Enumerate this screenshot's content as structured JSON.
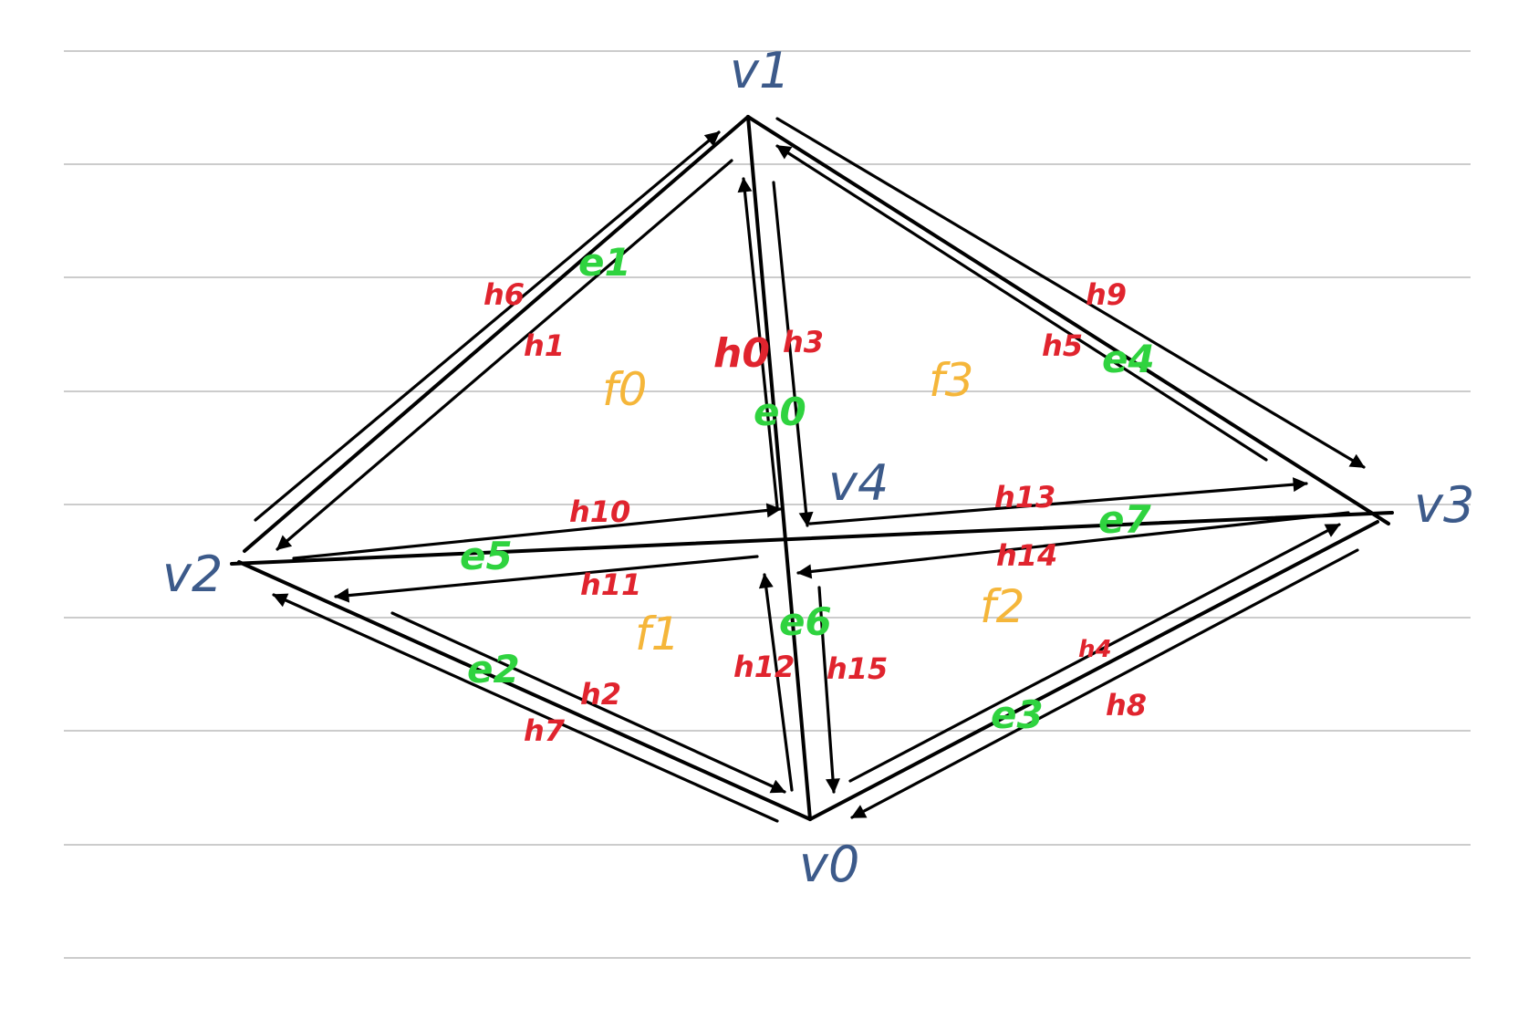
{
  "colors": {
    "vertex": "#3c5a8a",
    "edge": "#2fd33f",
    "halfedge": "#e0242e",
    "face": "#f5b63a",
    "stroke": "#000000",
    "ruled_line": "#bcbcbc"
  },
  "vertices": [
    {
      "id": "v0",
      "label": "v0"
    },
    {
      "id": "v1",
      "label": "v1"
    },
    {
      "id": "v2",
      "label": "v2"
    },
    {
      "id": "v3",
      "label": "v3"
    },
    {
      "id": "v4",
      "label": "v4"
    }
  ],
  "edges": [
    {
      "id": "e0",
      "label": "e0"
    },
    {
      "id": "e1",
      "label": "e1"
    },
    {
      "id": "e2",
      "label": "e2"
    },
    {
      "id": "e3",
      "label": "e3"
    },
    {
      "id": "e4",
      "label": "e4"
    },
    {
      "id": "e5",
      "label": "e5"
    },
    {
      "id": "e6",
      "label": "e6"
    },
    {
      "id": "e7",
      "label": "e7"
    }
  ],
  "faces": [
    {
      "id": "f0",
      "label": "f0"
    },
    {
      "id": "f1",
      "label": "f1"
    },
    {
      "id": "f2",
      "label": "f2"
    },
    {
      "id": "f3",
      "label": "f3"
    }
  ],
  "halfedges": [
    {
      "id": "h0",
      "label": "h0"
    },
    {
      "id": "h1",
      "label": "h1"
    },
    {
      "id": "h2",
      "label": "h2"
    },
    {
      "id": "h3",
      "label": "h3"
    },
    {
      "id": "h4",
      "label": "h4"
    },
    {
      "id": "h5",
      "label": "h5"
    },
    {
      "id": "h6",
      "label": "h6"
    },
    {
      "id": "h7",
      "label": "h7"
    },
    {
      "id": "h8",
      "label": "h8"
    },
    {
      "id": "h9",
      "label": "h9"
    },
    {
      "id": "h10",
      "label": "h10"
    },
    {
      "id": "h11",
      "label": "h11"
    },
    {
      "id": "h12",
      "label": "h12"
    },
    {
      "id": "h13",
      "label": "h13"
    },
    {
      "id": "h14",
      "label": "h14"
    },
    {
      "id": "h15",
      "label": "h15"
    }
  ]
}
